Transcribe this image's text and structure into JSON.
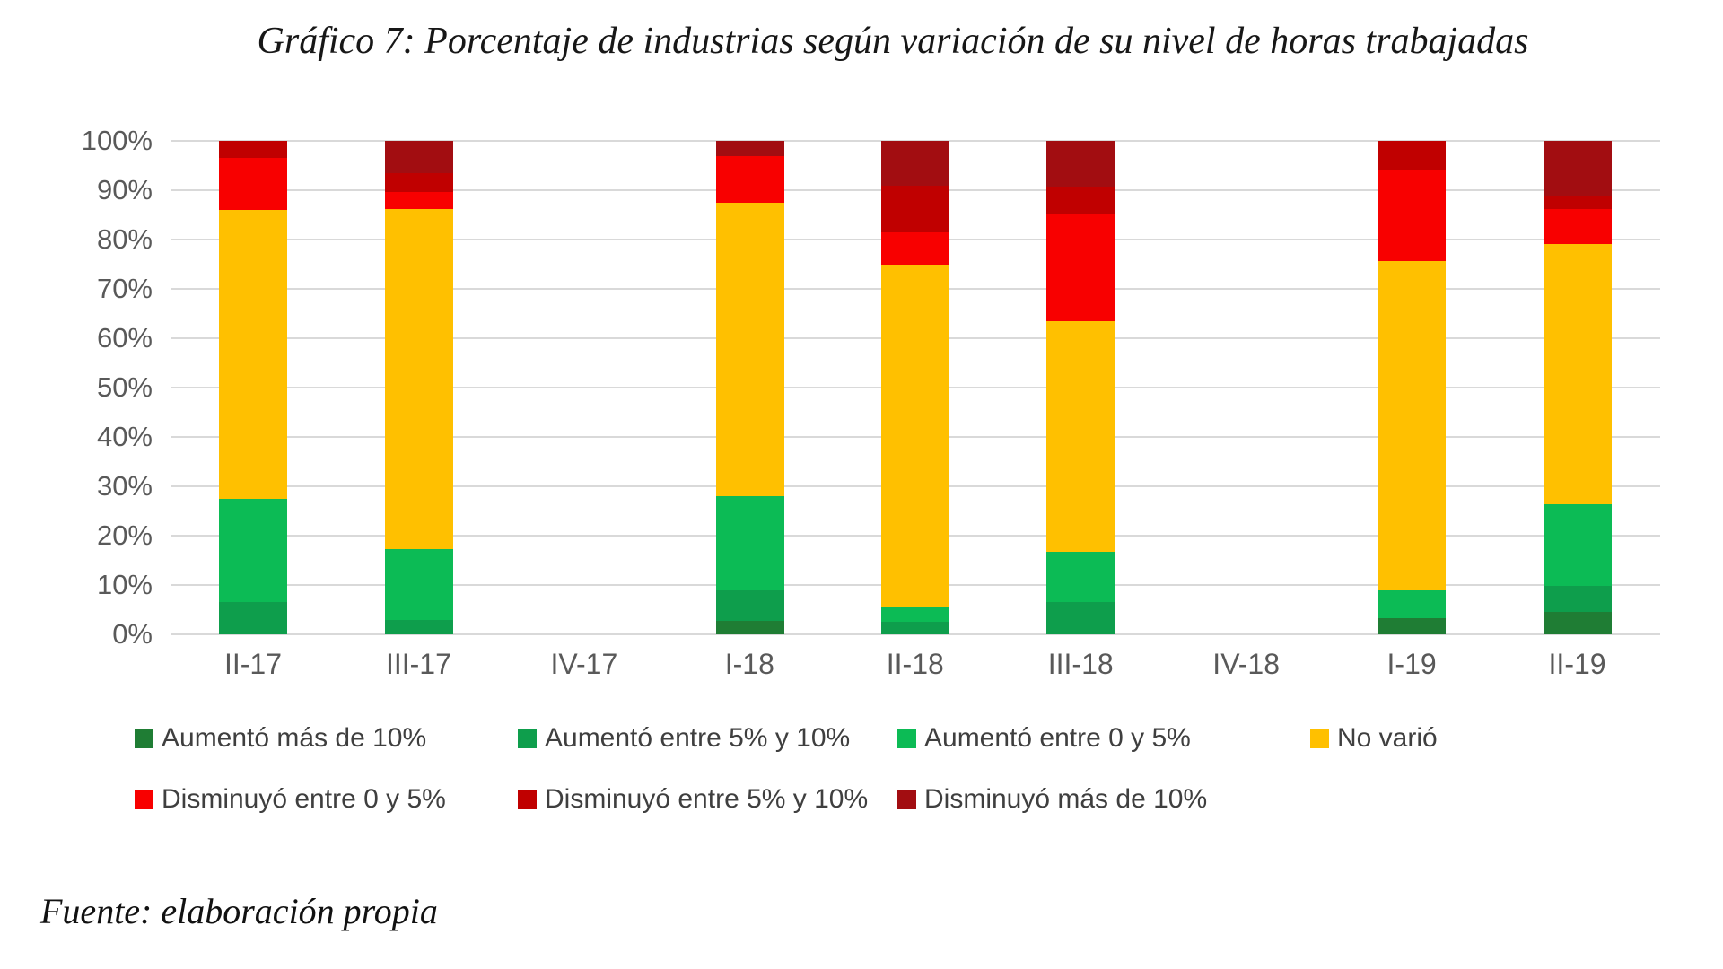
{
  "title": "Gráfico 7: Porcentaje de industrias según variación de su nivel de horas trabajadas",
  "source": "Fuente: elaboración propia",
  "chart_data": {
    "type": "bar",
    "stacked": true,
    "title": "Gráfico 7: Porcentaje de industrias según variación de su nivel de horas trabajadas",
    "xlabel": "",
    "ylabel": "",
    "ylim": [
      0,
      100
    ],
    "grid": true,
    "legend_position": "bottom",
    "yticks": [
      "0%",
      "10%",
      "20%",
      "30%",
      "40%",
      "50%",
      "60%",
      "70%",
      "80%",
      "90%",
      "100%"
    ],
    "categories": [
      "II-17",
      "III-17",
      "IV-17",
      "I-18",
      "II-18",
      "III-18",
      "IV-18",
      "I-19",
      "II-19"
    ],
    "series": [
      {
        "name": "Aumentó más de 10%",
        "color": "#1f7d34",
        "values": [
          0,
          0,
          0,
          2.7,
          0,
          0,
          0,
          3.2,
          4.5
        ]
      },
      {
        "name": "Aumentó entre 5% y 10%",
        "color": "#0e9e4c",
        "values": [
          6.5,
          2.9,
          0,
          6.2,
          2.5,
          6.5,
          0,
          0,
          5.3
        ]
      },
      {
        "name": "Aumentó entre 0 y 5%",
        "color": "#0cbb55",
        "values": [
          21.0,
          14.3,
          0,
          19.1,
          3.0,
          10.3,
          0,
          5.8,
          16.5
        ]
      },
      {
        "name": "No varió",
        "color": "#ffc000",
        "values": [
          58.5,
          69.0,
          0,
          59.5,
          69.5,
          46.7,
          0,
          66.7,
          52.8
        ]
      },
      {
        "name": "Disminuyó entre 0 y 5%",
        "color": "#f80000",
        "values": [
          10.5,
          3.4,
          0,
          9.5,
          6.5,
          21.8,
          0,
          18.5,
          7.1
        ]
      },
      {
        "name": "Disminuyó entre 5% y 10%",
        "color": "#c00000",
        "values": [
          3.5,
          3.9,
          0,
          0,
          9.4,
          5.5,
          0,
          5.8,
          2.8
        ]
      },
      {
        "name": "Disminuyó más de 10%",
        "color": "#a20d11",
        "values": [
          0,
          6.5,
          0,
          3.0,
          9.1,
          9.2,
          0,
          0,
          11.0
        ]
      }
    ],
    "legend_rows": [
      [
        0,
        1,
        2,
        3
      ],
      [
        4,
        5,
        6
      ]
    ]
  }
}
